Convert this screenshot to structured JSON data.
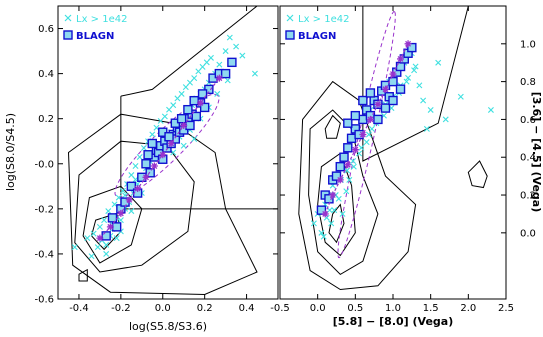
{
  "chart_data": [
    {
      "type": "scatter",
      "panel": "left",
      "xlabel": "log(S5.8/S3.6)",
      "ylabel": "log(S8.0/S4.5)",
      "xlim": [
        -0.5,
        0.55
      ],
      "ylim": [
        -0.6,
        0.7
      ],
      "xticks": [
        -0.4,
        -0.2,
        0.0,
        0.2,
        0.4
      ],
      "xtick_labels": [
        "-0.4",
        "-0.2",
        "0.0",
        "0.2",
        "0.4"
      ],
      "yticks": [
        -0.6,
        -0.4,
        -0.2,
        0.0,
        0.2,
        0.4,
        0.6
      ],
      "ytick_labels": [
        "-0.6",
        "-0.4",
        "-0.2",
        "-0.0",
        "0.2",
        "0.4",
        "0.6"
      ],
      "legend": [
        {
          "label": "Lx > 1e42",
          "marker": "x",
          "color": "#40e0e0"
        },
        {
          "label": "BLAGN",
          "marker": "open-square",
          "color": "#1010d0"
        }
      ],
      "series": [
        {
          "name": "Lx > 1e42",
          "marker": "x",
          "color": "#40e0e0",
          "x": [
            -0.42,
            -0.36,
            -0.33,
            -0.31,
            -0.3,
            -0.28,
            -0.27,
            -0.26,
            -0.25,
            -0.24,
            -0.23,
            -0.22,
            -0.21,
            -0.2,
            -0.19,
            -0.18,
            -0.17,
            -0.16,
            -0.15,
            -0.14,
            -0.13,
            -0.12,
            -0.11,
            -0.1,
            -0.09,
            -0.08,
            -0.07,
            -0.06,
            -0.05,
            -0.04,
            -0.03,
            -0.02,
            -0.01,
            0.0,
            0.01,
            0.02,
            0.03,
            0.04,
            0.05,
            0.06,
            0.07,
            0.08,
            0.09,
            0.1,
            0.11,
            0.12,
            0.13,
            0.14,
            0.15,
            0.16,
            0.17,
            0.18,
            0.19,
            0.2,
            0.21,
            0.22,
            0.23,
            0.25,
            0.27,
            0.3,
            0.32,
            0.35,
            0.38,
            -0.34,
            -0.29,
            -0.27,
            -0.24,
            -0.22,
            -0.2,
            -0.18,
            -0.15,
            -0.13,
            -0.1,
            -0.08,
            -0.05,
            -0.02,
            0.0,
            0.03,
            0.05,
            0.08,
            0.1,
            0.13,
            0.15,
            0.18,
            0.22,
            0.26,
            0.31,
            0.44
          ],
          "y": [
            -0.37,
            -0.33,
            -0.31,
            -0.37,
            -0.28,
            -0.25,
            -0.36,
            -0.21,
            -0.32,
            -0.27,
            -0.18,
            -0.24,
            -0.15,
            -0.3,
            -0.12,
            -0.2,
            -0.09,
            -0.17,
            -0.05,
            -0.13,
            -0.01,
            -0.09,
            0.03,
            -0.06,
            0.07,
            -0.02,
            0.1,
            0.01,
            0.13,
            0.04,
            0.16,
            0.06,
            0.19,
            0.09,
            0.21,
            0.11,
            0.24,
            0.14,
            0.26,
            0.16,
            0.29,
            0.19,
            0.31,
            0.21,
            0.34,
            0.23,
            0.36,
            0.26,
            0.38,
            0.29,
            0.41,
            0.31,
            0.43,
            0.33,
            0.45,
            0.36,
            0.47,
            0.4,
            0.44,
            0.5,
            0.56,
            0.52,
            0.48,
            -0.41,
            -0.34,
            -0.4,
            -0.29,
            -0.33,
            -0.25,
            -0.14,
            -0.21,
            -0.07,
            -0.13,
            0.0,
            -0.04,
            0.05,
            0.02,
            0.08,
            0.05,
            0.12,
            0.08,
            0.15,
            0.11,
            0.2,
            0.25,
            0.31,
            0.37,
            0.4
          ]
        },
        {
          "name": "BLAGN",
          "marker": "open-square",
          "color": "#1010d0",
          "x": [
            -0.27,
            -0.24,
            -0.22,
            -0.2,
            -0.18,
            -0.15,
            -0.12,
            -0.1,
            -0.08,
            -0.06,
            -0.04,
            -0.03,
            -0.02,
            -0.01,
            0.0,
            0.01,
            0.02,
            0.03,
            0.04,
            0.05,
            0.06,
            0.07,
            0.08,
            0.09,
            0.1,
            0.11,
            0.12,
            0.13,
            0.14,
            0.16,
            0.18,
            0.2,
            0.22,
            -0.07,
            -0.05,
            0.0,
            0.03,
            0.06,
            0.09,
            0.12,
            0.15,
            0.19,
            0.24,
            0.27,
            0.3,
            0.33
          ],
          "y": [
            -0.32,
            -0.24,
            -0.28,
            -0.2,
            -0.17,
            -0.1,
            -0.13,
            -0.06,
            0.0,
            -0.04,
            0.03,
            0.06,
            0.05,
            0.08,
            0.02,
            0.1,
            0.07,
            0.12,
            0.09,
            0.13,
            0.11,
            0.16,
            0.14,
            0.18,
            0.15,
            0.19,
            0.2,
            0.17,
            0.22,
            0.21,
            0.27,
            0.25,
            0.33,
            0.04,
            0.09,
            0.14,
            0.12,
            0.18,
            0.2,
            0.24,
            0.28,
            0.31,
            0.38,
            0.4,
            0.4,
            0.45
          ]
        },
        {
          "name": "track",
          "marker": "star",
          "color": "#9933cc",
          "x": [
            -0.3,
            -0.25,
            -0.2,
            -0.16,
            -0.12,
            -0.08,
            -0.04,
            0.0,
            0.04,
            0.1,
            0.18,
            0.27
          ],
          "y": [
            -0.33,
            -0.28,
            -0.22,
            -0.16,
            -0.11,
            -0.06,
            -0.01,
            0.04,
            0.09,
            0.17,
            0.27,
            0.38
          ]
        }
      ]
    },
    {
      "type": "scatter",
      "panel": "right",
      "xlabel": "[5.8] − [8.0] (Vega)",
      "ylabel": "[3.6] − [4.5] (Vega)",
      "xlim": [
        -0.5,
        2.5
      ],
      "ylim": [
        -0.35,
        1.2
      ],
      "xticks": [
        -0.5,
        0.0,
        0.5,
        1.0,
        1.5,
        2.0,
        2.5
      ],
      "xtick_labels": [
        "-0.5",
        "0.0",
        "0.5",
        "1.0",
        "1.5",
        "2.0",
        "2.5"
      ],
      "yticks": [
        0.0,
        0.2,
        0.4,
        0.6,
        0.8,
        1.0
      ],
      "ytick_labels": [
        "0.0",
        "0.2",
        "0.4",
        "0.6",
        "0.8",
        "1.0"
      ],
      "legend": [
        {
          "label": "Lx > 1e42",
          "marker": "x",
          "color": "#40e0e0"
        },
        {
          "label": "BLAGN",
          "marker": "open-square",
          "color": "#1010d0"
        }
      ],
      "series": [
        {
          "name": "Lx > 1e42",
          "marker": "x",
          "color": "#40e0e0",
          "x": [
            -0.05,
            0.0,
            0.05,
            0.1,
            0.12,
            0.15,
            0.18,
            0.2,
            0.22,
            0.25,
            0.28,
            0.3,
            0.33,
            0.35,
            0.38,
            0.4,
            0.42,
            0.45,
            0.48,
            0.5,
            0.55,
            0.6,
            0.65,
            0.7,
            0.72,
            0.75,
            0.8,
            0.85,
            0.9,
            0.95,
            1.0,
            1.05,
            1.1,
            1.15,
            1.2,
            1.25,
            1.3,
            1.35,
            1.4,
            1.5,
            1.6,
            1.7,
            0.08,
            0.16,
            0.24,
            0.31,
            0.39,
            0.47,
            0.58,
            0.68,
            0.78,
            0.88,
            0.98,
            1.08,
            1.18,
            1.28,
            1.45,
            1.9,
            2.3
          ],
          "y": [
            0.05,
            0.1,
            0.0,
            0.15,
            0.08,
            0.2,
            0.05,
            0.25,
            0.12,
            0.3,
            0.18,
            0.35,
            0.1,
            0.4,
            0.22,
            0.45,
            0.28,
            0.5,
            0.35,
            0.55,
            0.42,
            0.6,
            0.48,
            0.65,
            0.55,
            0.7,
            0.6,
            0.75,
            0.68,
            0.8,
            0.72,
            0.85,
            0.78,
            0.9,
            0.82,
            0.95,
            0.88,
            0.78,
            0.7,
            0.65,
            0.9,
            0.6,
            -0.02,
            0.12,
            0.2,
            0.28,
            0.33,
            0.38,
            0.45,
            0.52,
            0.58,
            0.62,
            0.66,
            0.74,
            0.8,
            0.86,
            0.55,
            0.72,
            0.65
          ]
        },
        {
          "name": "BLAGN",
          "marker": "open-square",
          "color": "#1010d0",
          "x": [
            0.05,
            0.1,
            0.15,
            0.2,
            0.25,
            0.3,
            0.35,
            0.4,
            0.45,
            0.5,
            0.55,
            0.6,
            0.65,
            0.7,
            0.75,
            0.8,
            0.85,
            0.9,
            0.95,
            1.0,
            1.05,
            1.1,
            1.15,
            1.2,
            1.25,
            0.4,
            0.5,
            0.6,
            0.7,
            0.8,
            0.9,
            1.0,
            1.1
          ],
          "y": [
            0.12,
            0.2,
            0.18,
            0.28,
            0.3,
            0.35,
            0.4,
            0.45,
            0.5,
            0.55,
            0.52,
            0.6,
            0.65,
            0.62,
            0.7,
            0.68,
            0.75,
            0.78,
            0.72,
            0.8,
            0.85,
            0.88,
            0.92,
            0.95,
            0.98,
            0.58,
            0.62,
            0.7,
            0.74,
            0.6,
            0.66,
            0.7,
            0.76
          ]
        },
        {
          "name": "track",
          "marker": "star",
          "color": "#9933cc",
          "x": [
            0.1,
            0.2,
            0.3,
            0.4,
            0.5,
            0.6,
            0.7,
            0.8,
            0.9,
            1.0,
            1.1,
            1.2
          ],
          "y": [
            0.1,
            0.2,
            0.28,
            0.36,
            0.44,
            0.52,
            0.6,
            0.68,
            0.76,
            0.84,
            0.92,
            1.0
          ]
        }
      ]
    }
  ]
}
